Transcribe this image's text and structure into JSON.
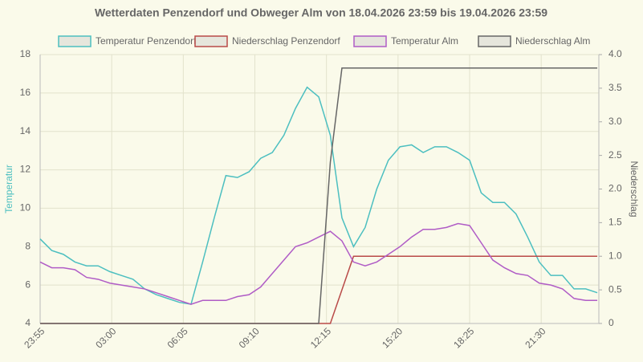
{
  "chart_data": {
    "type": "line",
    "title": "Wetterdaten Penzendorf und Obweger Alm von 18.04.2026 23:59 bis 19.04.2026 23:59",
    "ylabel": "Temperatur",
    "y2label": "Niederschlag",
    "x": [
      0,
      30,
      60,
      90,
      120,
      150,
      180,
      210,
      240,
      270,
      300,
      330,
      360,
      390,
      420,
      450,
      480,
      510,
      540,
      570,
      600,
      630,
      660,
      690,
      720,
      750,
      780,
      810,
      840,
      870,
      900,
      930,
      960,
      990,
      1020,
      1050,
      1080,
      1110,
      1140,
      1170,
      1200,
      1230,
      1260,
      1290,
      1320,
      1350,
      1380,
      1410,
      1440
    ],
    "xlim": [
      0,
      1444
    ],
    "xticks": [
      {
        "value": 0,
        "label": "23:55"
      },
      {
        "value": 185,
        "label": "03:00"
      },
      {
        "value": 370,
        "label": "06:05"
      },
      {
        "value": 555,
        "label": "09:10"
      },
      {
        "value": 740,
        "label": "12:15"
      },
      {
        "value": 925,
        "label": "15:20"
      },
      {
        "value": 1110,
        "label": "18:25"
      },
      {
        "value": 1295,
        "label": "21:30"
      }
    ],
    "ylim": [
      4,
      18
    ],
    "yticks": [
      4,
      6,
      8,
      10,
      12,
      14,
      16,
      18
    ],
    "y2lim": [
      0,
      4
    ],
    "y2ticks": [
      0,
      0.5,
      {
        "value": 1,
        "label": "1.0"
      },
      1.5,
      {
        "value": 2,
        "label": "2.0"
      },
      2.5,
      {
        "value": 3,
        "label": "3.0"
      },
      3.5,
      {
        "value": 4,
        "label": "4.0"
      }
    ],
    "grid": true,
    "series": [
      {
        "name": "Temperatur Penzendorf",
        "color": "#4cbfc0",
        "values": [
          8.4,
          7.8,
          7.6,
          7.2,
          7.0,
          7.0,
          6.7,
          6.5,
          6.3,
          5.8,
          5.5,
          5.3,
          5.1,
          5.0,
          7.2,
          9.5,
          11.7,
          11.6,
          11.9,
          12.6,
          12.9,
          13.8,
          15.2,
          16.3,
          15.8,
          13.8,
          9.5,
          8.0,
          9.0,
          11.0,
          12.5,
          13.2,
          13.3,
          12.9,
          13.2,
          13.2,
          12.9,
          12.5,
          10.8,
          10.3,
          10.3,
          9.7,
          8.5,
          7.2,
          6.5,
          6.5,
          5.8,
          5.8,
          5.6
        ]
      },
      {
        "name": "Niederschlag Penzendorf",
        "color": "#b94a48",
        "axis": "y2",
        "values": [
          0,
          0,
          0,
          0,
          0,
          0,
          0,
          0,
          0,
          0,
          0,
          0,
          0,
          0,
          0,
          0,
          0,
          0,
          0,
          0,
          0,
          0,
          0,
          0,
          0,
          0,
          0.5,
          1,
          1,
          1,
          1,
          1,
          1,
          1,
          1,
          1,
          1,
          1,
          1,
          1,
          1,
          1,
          1,
          1,
          1,
          1,
          1,
          1,
          1
        ]
      },
      {
        "name": "Temperatur Alm",
        "color": "#b05cc6",
        "values": [
          7.2,
          6.9,
          6.9,
          6.8,
          6.4,
          6.3,
          6.1,
          6.0,
          5.9,
          5.8,
          5.6,
          5.4,
          5.2,
          5.0,
          5.2,
          5.2,
          5.2,
          5.4,
          5.5,
          5.9,
          6.6,
          7.3,
          8.0,
          8.2,
          8.5,
          8.8,
          8.3,
          7.2,
          7.0,
          7.2,
          7.6,
          8.0,
          8.5,
          8.9,
          8.9,
          9.0,
          9.2,
          9.1,
          8.2,
          7.3,
          6.9,
          6.6,
          6.5,
          6.1,
          6.0,
          5.8,
          5.3,
          5.2,
          5.2
        ]
      },
      {
        "name": "Niederschlag Alm",
        "color": "#666666",
        "axis": "y2",
        "values": [
          0,
          0,
          0,
          0,
          0,
          0,
          0,
          0,
          0,
          0,
          0,
          0,
          0,
          0,
          0,
          0,
          0,
          0,
          0,
          0,
          0,
          0,
          0,
          0,
          0,
          2.4,
          3.8,
          3.8,
          3.8,
          3.8,
          3.8,
          3.8,
          3.8,
          3.8,
          3.8,
          3.8,
          3.8,
          3.8,
          3.8,
          3.8,
          3.8,
          3.8,
          3.8,
          3.8,
          3.8,
          3.8,
          3.8,
          3.8,
          3.8
        ]
      }
    ]
  }
}
